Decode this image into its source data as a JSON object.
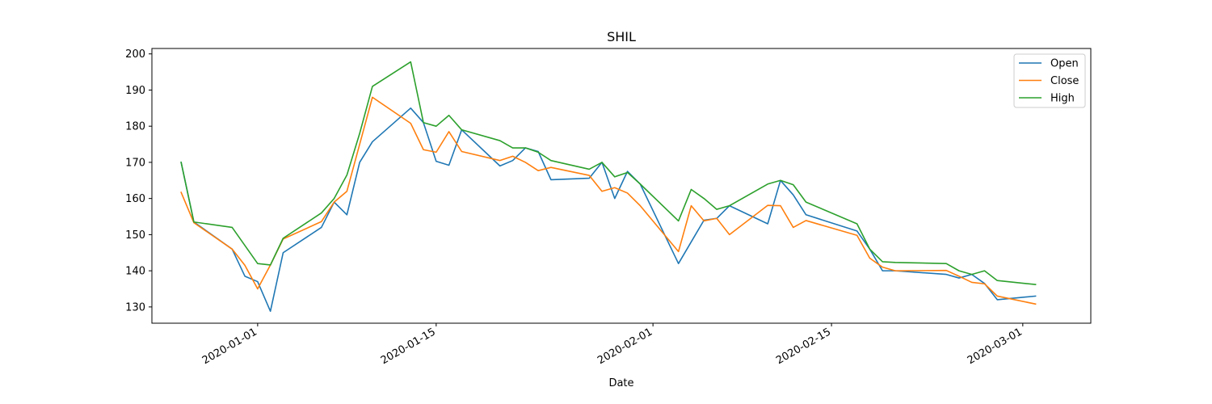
{
  "chart_data": {
    "type": "line",
    "title": "SHIL",
    "xlabel": "Date",
    "ylabel": "",
    "ylim": [
      125.5,
      201.5
    ],
    "xlim": [
      "2019-12-23T17:00",
      "2020-03-06T08:00"
    ],
    "grid": false,
    "legend_position": "top-right",
    "x_ticks": [
      "2020-01-01",
      "2020-01-15",
      "2020-02-01",
      "2020-02-15",
      "2020-03-01"
    ],
    "y_ticks": [
      130,
      140,
      150,
      160,
      170,
      180,
      190,
      200
    ],
    "x": [
      "2019-12-26",
      "2019-12-27",
      "2019-12-30",
      "2019-12-31",
      "2020-01-01",
      "2020-01-02",
      "2020-01-03",
      "2020-01-06",
      "2020-01-07",
      "2020-01-08",
      "2020-01-09",
      "2020-01-10",
      "2020-01-13",
      "2020-01-14",
      "2020-01-15",
      "2020-01-16",
      "2020-01-17",
      "2020-01-20",
      "2020-01-21",
      "2020-01-22",
      "2020-01-23",
      "2020-01-24",
      "2020-01-27",
      "2020-01-28",
      "2020-01-29",
      "2020-01-30",
      "2020-01-31",
      "2020-02-03",
      "2020-02-04",
      "2020-02-05",
      "2020-02-06",
      "2020-02-07",
      "2020-02-10",
      "2020-02-11",
      "2020-02-12",
      "2020-02-13",
      "2020-02-17",
      "2020-02-18",
      "2020-02-19",
      "2020-02-20",
      "2020-02-24",
      "2020-02-25",
      "2020-02-26",
      "2020-02-27",
      "2020-02-28",
      "2020-03-02"
    ],
    "series": [
      {
        "name": "Open",
        "color": "#1f77b4",
        "values": [
          170.0,
          153.5,
          146.0,
          138.5,
          137.0,
          128.8,
          145.0,
          152.0,
          159.0,
          155.5,
          170.0,
          175.7,
          185.0,
          181.0,
          170.3,
          169.2,
          179.0,
          169.0,
          170.5,
          174.0,
          173.0,
          165.2,
          165.6,
          170.0,
          160.0,
          167.5,
          164.0,
          142.0,
          148.0,
          154.0,
          154.5,
          158.0,
          153.0,
          165.0,
          161.0,
          155.5,
          151.0,
          146.0,
          140.0,
          140.0,
          139.0,
          138.0,
          139.0,
          136.5,
          132.0,
          133.0
        ]
      },
      {
        "name": "Close",
        "color": "#ff7f0e",
        "values": [
          161.7,
          153.3,
          146.0,
          141.5,
          135.0,
          141.6,
          148.8,
          153.6,
          159.0,
          162.0,
          175.0,
          188.0,
          180.8,
          173.5,
          172.8,
          178.5,
          173.0,
          170.5,
          171.7,
          170.0,
          167.7,
          168.6,
          166.4,
          162.0,
          163.0,
          161.5,
          158.0,
          145.3,
          158.0,
          153.8,
          154.5,
          150.0,
          158.1,
          158.0,
          152.0,
          153.9,
          149.8,
          143.5,
          141.0,
          140.0,
          140.1,
          138.5,
          136.8,
          136.4,
          133.0,
          130.8
        ]
      },
      {
        "name": "High",
        "color": "#2ca02c",
        "values": [
          170.0,
          153.5,
          152.0,
          147.0,
          142.0,
          141.6,
          149.0,
          156.0,
          160.0,
          166.5,
          178.0,
          191.0,
          197.8,
          181.0,
          180.0,
          183.0,
          179.0,
          176.0,
          174.0,
          174.0,
          172.8,
          170.5,
          168.1,
          170.0,
          166.0,
          167.2,
          164.0,
          153.8,
          162.5,
          160.0,
          157.0,
          158.0,
          164.0,
          165.0,
          163.8,
          159.0,
          153.0,
          146.0,
          142.5,
          142.3,
          142.0,
          140.0,
          139.0,
          140.0,
          137.3,
          136.2
        ]
      }
    ]
  }
}
